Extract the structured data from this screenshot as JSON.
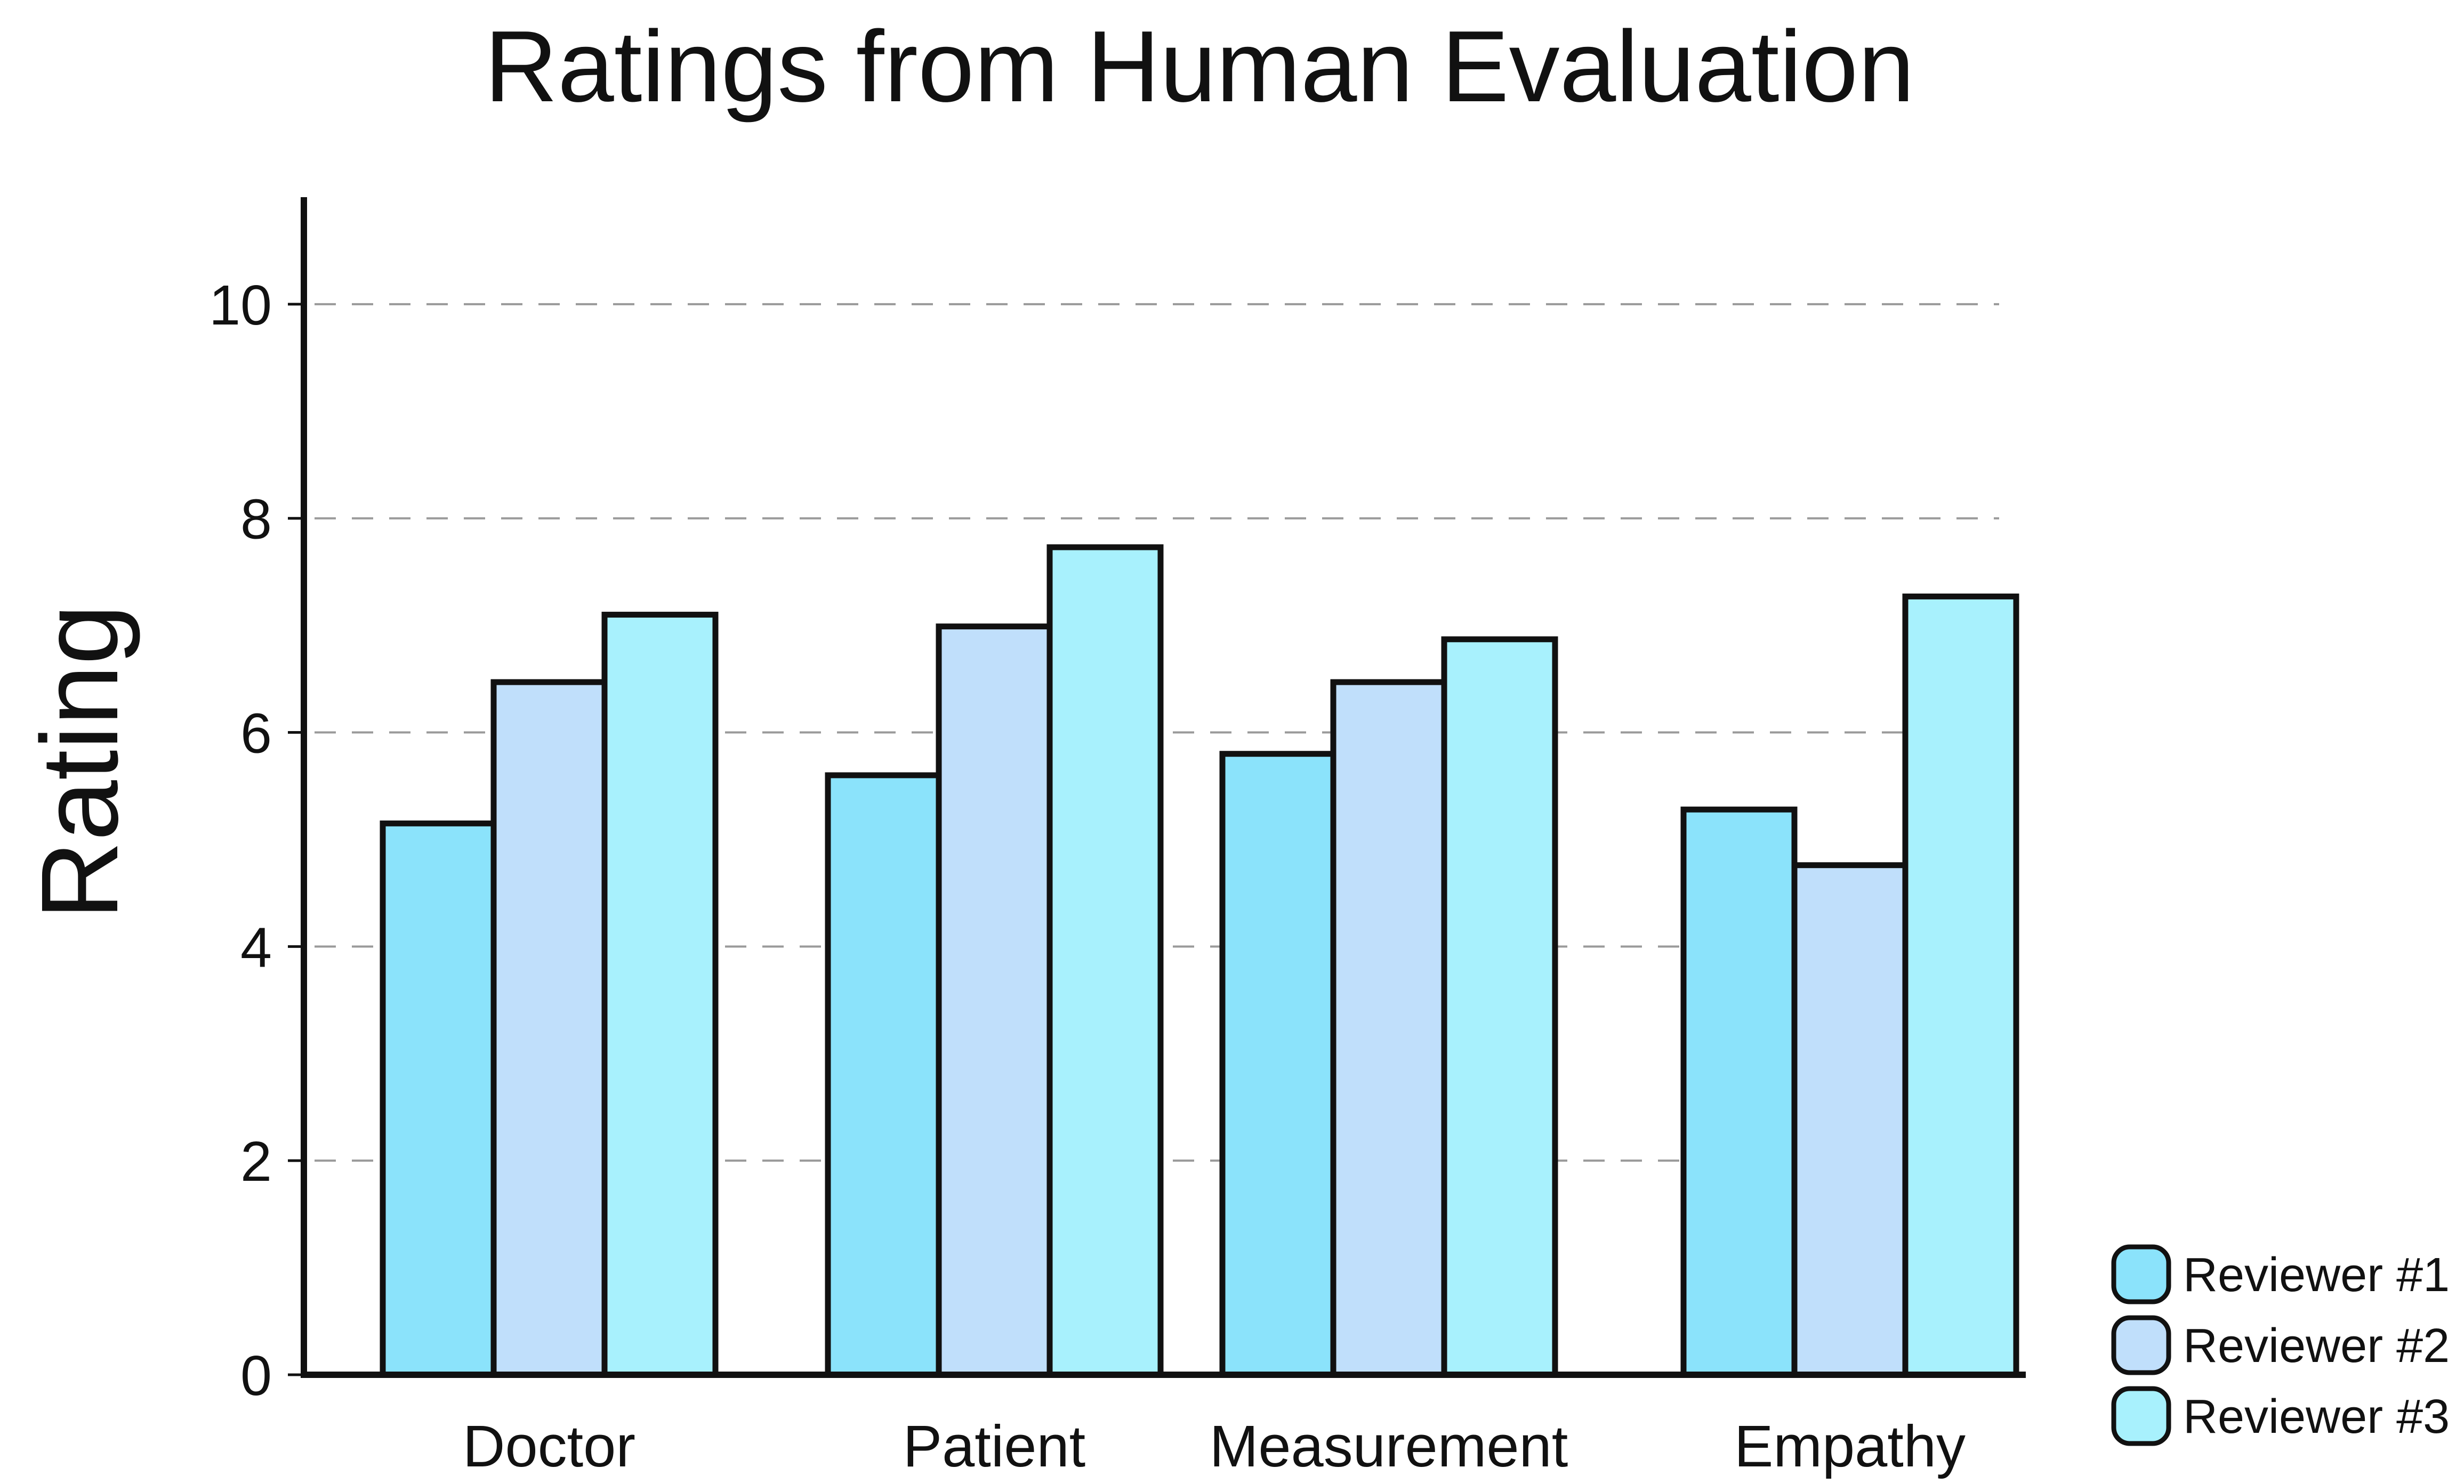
{
  "chart_data": {
    "type": "bar",
    "title": "Ratings from Human Evaluation",
    "xlabel": "",
    "ylabel": "Rating",
    "categories": [
      "Doctor",
      "Patient",
      "Measurement",
      "Empathy"
    ],
    "series": [
      {
        "name": "Reviewer #1",
        "color": "#8be3fb",
        "values": [
          5.15,
          5.6,
          5.8,
          5.28
        ]
      },
      {
        "name": "Reviewer #2",
        "color": "#c0dffb",
        "values": [
          6.47,
          6.99,
          6.47,
          4.76
        ]
      },
      {
        "name": "Reviewer #3",
        "color": "#a8f1fd",
        "values": [
          7.1,
          7.73,
          6.87,
          7.27
        ]
      }
    ],
    "ylim": [
      0,
      11
    ],
    "yticks": [
      "0",
      "2",
      "4",
      "6",
      "8",
      "10"
    ],
    "grid": "dashed horizontal",
    "legend": "bottom-right"
  }
}
